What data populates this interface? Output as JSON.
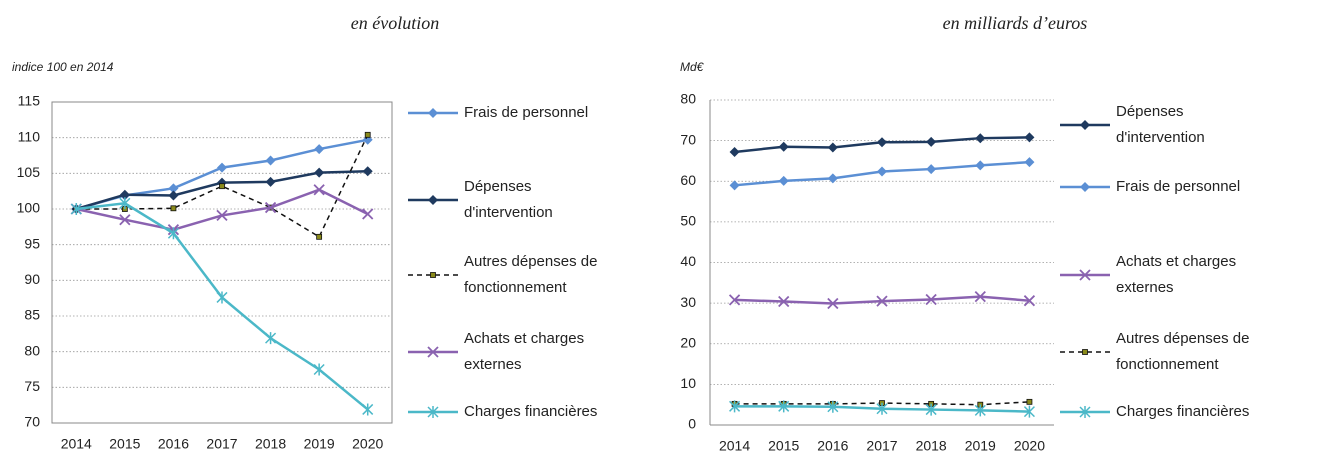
{
  "chart_data": [
    {
      "type": "line",
      "title": "en évolution",
      "y_label": "indice 100 en 2014",
      "categories": [
        "2014",
        "2015",
        "2016",
        "2017",
        "2018",
        "2019",
        "2020"
      ],
      "ylim": [
        70,
        115
      ],
      "yticks": [
        70,
        75,
        80,
        85,
        90,
        95,
        100,
        105,
        110,
        115
      ],
      "grid": true,
      "frame": true,
      "series": [
        {
          "name": "Frais de personnel",
          "color": "#5b8fd4",
          "marker": "diamond",
          "dash": false,
          "values": [
            100,
            101.9,
            102.9,
            105.8,
            106.8,
            108.4,
            109.7
          ]
        },
        {
          "name": "Dépenses d'intervention",
          "color": "#1f3a5f",
          "marker": "diamond",
          "dash": false,
          "values": [
            100,
            102,
            101.9,
            103.7,
            103.8,
            105.1,
            105.3
          ]
        },
        {
          "name": "Autres dépenses de fonctionnement",
          "color": "#111111",
          "marker": "square",
          "dash": true,
          "values": [
            100,
            100,
            100.1,
            103.2,
            100.2,
            96.1,
            110.4
          ]
        },
        {
          "name": "Achats et charges externes",
          "color": "#8a62b0",
          "marker": "cross",
          "dash": false,
          "values": [
            100,
            98.5,
            97.1,
            99.1,
            100.2,
            102.7,
            99.3
          ]
        },
        {
          "name": "Charges financières",
          "color": "#4bb8c8",
          "marker": "star",
          "dash": false,
          "values": [
            100,
            100.8,
            96.6,
            87.6,
            81.9,
            77.5,
            71.9
          ]
        }
      ]
    },
    {
      "type": "line",
      "title": "en milliards d’euros",
      "y_label": "Md€",
      "categories": [
        "2014",
        "2015",
        "2016",
        "2017",
        "2018",
        "2019",
        "2020"
      ],
      "ylim": [
        0,
        80
      ],
      "yticks": [
        0,
        10,
        20,
        30,
        40,
        50,
        60,
        70,
        80
      ],
      "grid": true,
      "frame": false,
      "series": [
        {
          "name": "Dépenses d'intervention",
          "color": "#1f3a5f",
          "marker": "diamond",
          "dash": false,
          "values": [
            67.2,
            68.5,
            68.3,
            69.6,
            69.7,
            70.6,
            70.8
          ]
        },
        {
          "name": "Frais de personnel",
          "color": "#5b8fd4",
          "marker": "diamond",
          "dash": false,
          "values": [
            59,
            60.1,
            60.7,
            62.4,
            63,
            63.9,
            64.7
          ]
        },
        {
          "name": "Achats et charges externes",
          "color": "#8a62b0",
          "marker": "cross",
          "dash": false,
          "values": [
            30.8,
            30.4,
            29.9,
            30.5,
            30.9,
            31.6,
            30.6
          ]
        },
        {
          "name": "Autres dépenses de fonctionnement",
          "color": "#111111",
          "marker": "square",
          "dash": true,
          "values": [
            5.2,
            5.2,
            5.2,
            5.4,
            5.2,
            5.0,
            5.7
          ]
        },
        {
          "name": "Charges financières",
          "color": "#4bb8c8",
          "marker": "star",
          "dash": false,
          "values": [
            4.6,
            4.6,
            4.5,
            4.0,
            3.8,
            3.6,
            3.3
          ]
        }
      ]
    }
  ]
}
